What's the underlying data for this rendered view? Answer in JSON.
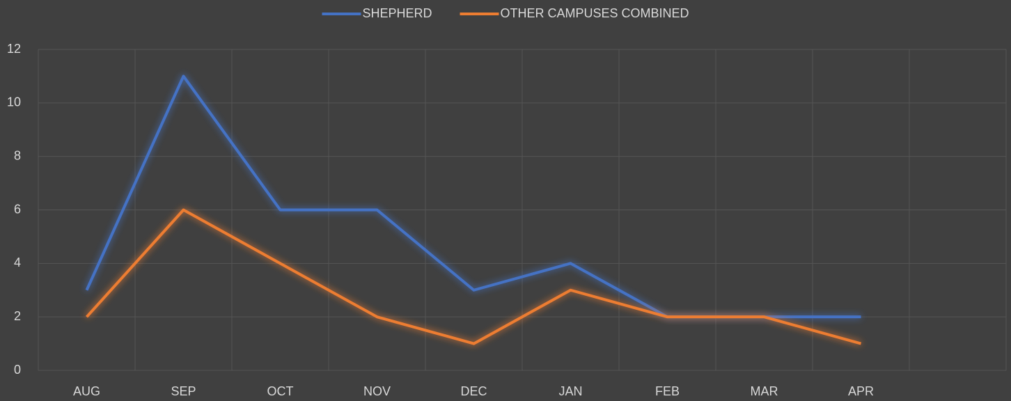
{
  "chart_data": {
    "type": "line",
    "categories": [
      "AUG",
      "SEP",
      "OCT",
      "NOV",
      "DEC",
      "JAN",
      "FEB",
      "MAR",
      "APR",
      null
    ],
    "series": [
      {
        "name": "SHEPHERD",
        "color": "#4472c4",
        "values": [
          3,
          11,
          6,
          6,
          3,
          4,
          2,
          2,
          2,
          null
        ]
      },
      {
        "name": "OTHER CAMPUSES COMBINED",
        "color": "#ed7d31",
        "values": [
          2,
          6,
          4,
          2,
          1,
          3,
          2,
          2,
          1,
          null
        ]
      }
    ],
    "ylim": [
      0,
      12
    ],
    "yticks": [
      0,
      2,
      4,
      6,
      8,
      10,
      12
    ],
    "grid": true,
    "legend": "top"
  }
}
